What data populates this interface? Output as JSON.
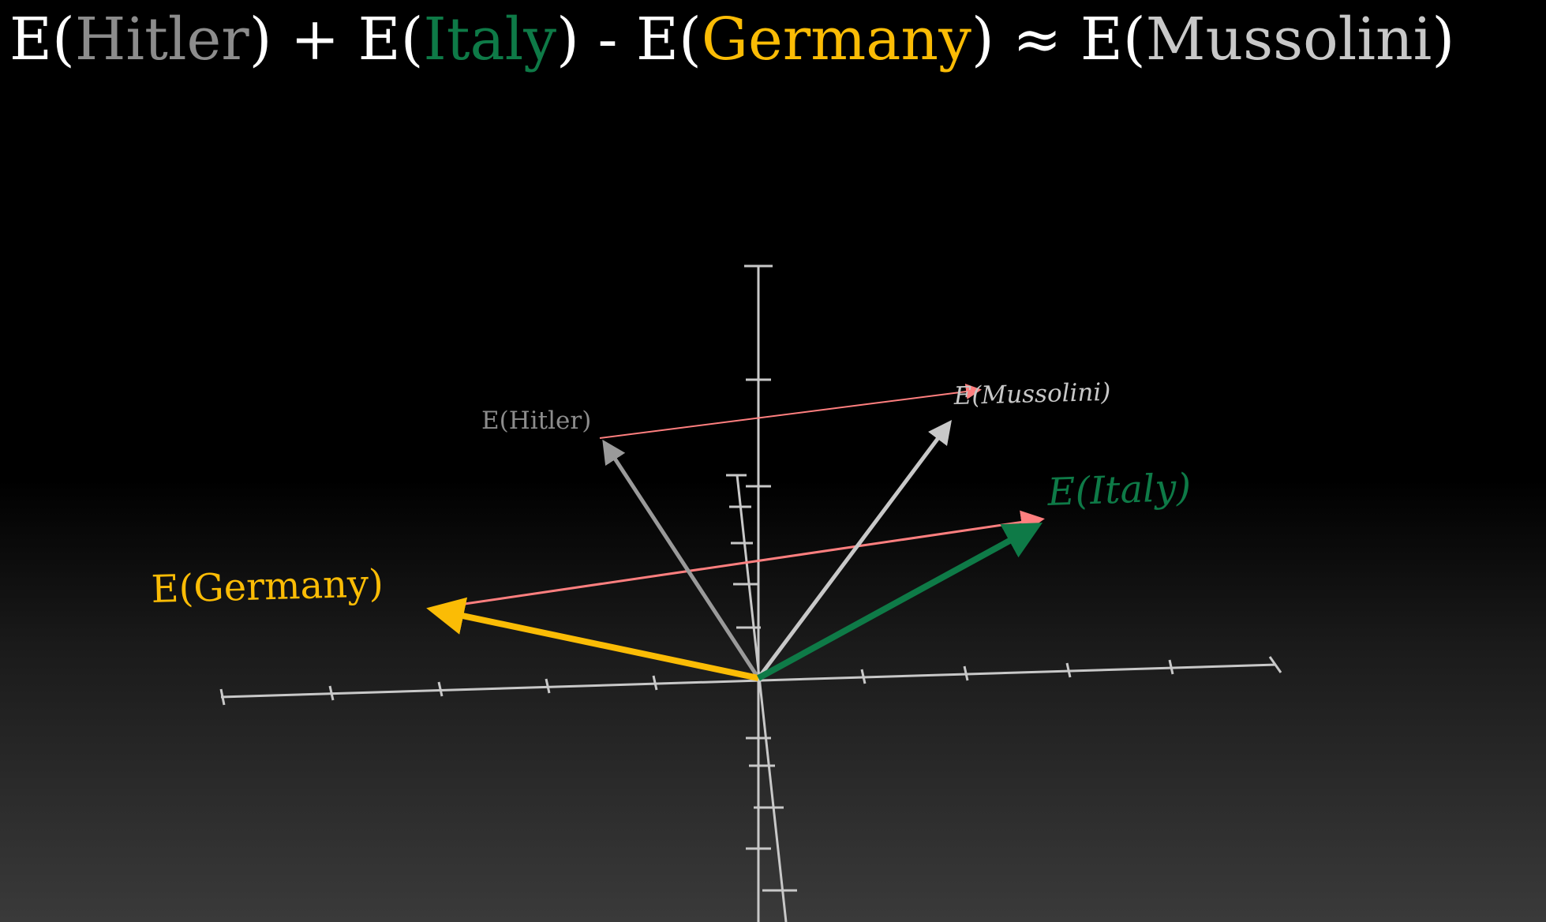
{
  "colors": {
    "white": "#ffffff",
    "hitler": "#8c8c8c",
    "italy": "#0e7a47",
    "germany": "#fbbc05",
    "mussolini": "#c8c8c8",
    "axes": "#c8c8c8",
    "difference": "#ff7f7f"
  },
  "equation": {
    "p1": "E(",
    "hitler": "Hitler",
    "p2": ") + E(",
    "italy": "Italy",
    "p3": ") - E(",
    "germany": "Germany",
    "p4": ") ≈ E(",
    "mussolini": "Mussolini",
    "p5": ")"
  },
  "labels": {
    "hitler": "E(Hitler)",
    "mussolini": "E(Mussolini)",
    "italy": "E(Italy)",
    "germany": "E(Germany)"
  }
}
